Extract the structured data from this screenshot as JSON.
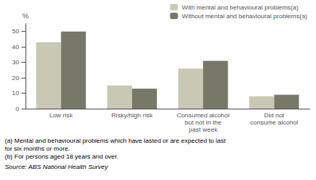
{
  "chart_data": {
    "type": "bar",
    "categories": [
      "Low risk",
      "Risky/high risk",
      "Consumed alcohol\nbut not in the\npast week",
      "Did not\nconsume alcohol"
    ],
    "series": [
      {
        "name": "With mental and behavioural problems(a)",
        "color": "#c8c8b4",
        "values": [
          43,
          15,
          26,
          8
        ]
      },
      {
        "name": "Without mental and behavioural problems(a)",
        "color": "#787868",
        "values": [
          50,
          13,
          31,
          9
        ]
      }
    ],
    "ylabel": "%",
    "ylim": [
      0,
      55
    ],
    "yticks": [
      0,
      10,
      20,
      30,
      40,
      50
    ],
    "grid": false,
    "legend": "upper right",
    "footnotes": [
      "(a) Mental and behavioural problems which have lasted or are expected to last",
      "for six months or more.",
      "(b) For persons aged 18 years and over."
    ],
    "source": "Source: ABS National Health Survey"
  }
}
